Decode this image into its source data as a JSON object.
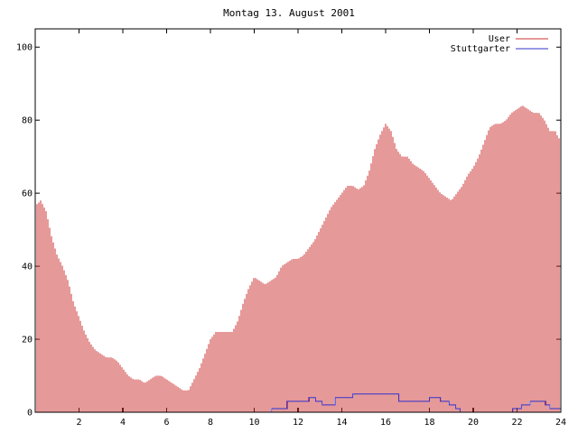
{
  "chart_data": {
    "type": "bar",
    "title": "Montag 13. August 2001",
    "xlim": [
      0,
      24
    ],
    "ylim": [
      0,
      105
    ],
    "x_ticks": [
      2,
      4,
      6,
      8,
      10,
      12,
      14,
      16,
      18,
      20,
      22,
      24
    ],
    "y_ticks": [
      0,
      20,
      40,
      60,
      80,
      100
    ],
    "legend_position": "top-right",
    "colors": {
      "user": "#cc3333",
      "stuttgarter": "#3333cc"
    },
    "series": [
      {
        "name": "User",
        "style": "impulses",
        "points": [
          [
            0.1,
            57
          ],
          [
            0.25,
            58
          ],
          [
            0.5,
            55
          ],
          [
            0.75,
            48
          ],
          [
            1.0,
            43
          ],
          [
            1.25,
            40
          ],
          [
            1.5,
            36
          ],
          [
            1.75,
            30
          ],
          [
            2.0,
            26
          ],
          [
            2.25,
            22
          ],
          [
            2.5,
            19
          ],
          [
            2.75,
            17
          ],
          [
            3.0,
            16
          ],
          [
            3.25,
            15
          ],
          [
            3.5,
            15
          ],
          [
            3.75,
            14
          ],
          [
            4.0,
            12
          ],
          [
            4.25,
            10
          ],
          [
            4.5,
            9
          ],
          [
            4.75,
            9
          ],
          [
            5.0,
            8
          ],
          [
            5.25,
            9
          ],
          [
            5.5,
            10
          ],
          [
            5.75,
            10
          ],
          [
            6.0,
            9
          ],
          [
            6.25,
            8
          ],
          [
            6.5,
            7
          ],
          [
            6.75,
            6
          ],
          [
            7.0,
            6
          ],
          [
            7.25,
            9
          ],
          [
            7.5,
            12
          ],
          [
            7.75,
            16
          ],
          [
            8.0,
            20
          ],
          [
            8.25,
            22
          ],
          [
            8.5,
            22
          ],
          [
            8.75,
            22
          ],
          [
            9.0,
            22
          ],
          [
            9.25,
            25
          ],
          [
            9.5,
            30
          ],
          [
            9.75,
            34
          ],
          [
            10.0,
            37
          ],
          [
            10.25,
            36
          ],
          [
            10.5,
            35
          ],
          [
            10.75,
            36
          ],
          [
            11.0,
            37
          ],
          [
            11.25,
            40
          ],
          [
            11.5,
            41
          ],
          [
            11.75,
            42
          ],
          [
            12.0,
            42
          ],
          [
            12.25,
            43
          ],
          [
            12.5,
            45
          ],
          [
            12.75,
            47
          ],
          [
            13.0,
            50
          ],
          [
            13.25,
            53
          ],
          [
            13.5,
            56
          ],
          [
            13.75,
            58
          ],
          [
            14.0,
            60
          ],
          [
            14.25,
            62
          ],
          [
            14.5,
            62
          ],
          [
            14.75,
            61
          ],
          [
            15.0,
            62
          ],
          [
            15.25,
            66
          ],
          [
            15.5,
            72
          ],
          [
            15.75,
            76
          ],
          [
            16.0,
            79
          ],
          [
            16.25,
            77
          ],
          [
            16.5,
            72
          ],
          [
            16.75,
            70
          ],
          [
            17.0,
            70
          ],
          [
            17.25,
            68
          ],
          [
            17.5,
            67
          ],
          [
            17.75,
            66
          ],
          [
            18.0,
            64
          ],
          [
            18.25,
            62
          ],
          [
            18.5,
            60
          ],
          [
            18.75,
            59
          ],
          [
            19.0,
            58
          ],
          [
            19.25,
            60
          ],
          [
            19.5,
            62
          ],
          [
            19.75,
            65
          ],
          [
            20.0,
            67
          ],
          [
            20.25,
            70
          ],
          [
            20.5,
            74
          ],
          [
            20.75,
            78
          ],
          [
            21.0,
            79
          ],
          [
            21.25,
            79
          ],
          [
            21.5,
            80
          ],
          [
            21.75,
            82
          ],
          [
            22.0,
            83
          ],
          [
            22.25,
            84
          ],
          [
            22.5,
            83
          ],
          [
            22.75,
            82
          ],
          [
            23.0,
            82
          ],
          [
            23.25,
            80
          ],
          [
            23.5,
            77
          ],
          [
            23.75,
            77
          ],
          [
            23.9,
            75
          ]
        ]
      },
      {
        "name": "Stuttgarter",
        "style": "line",
        "points": [
          [
            0,
            0
          ],
          [
            10.7,
            0
          ],
          [
            10.8,
            1
          ],
          [
            11.4,
            1
          ],
          [
            11.5,
            3
          ],
          [
            12.4,
            3
          ],
          [
            12.5,
            4
          ],
          [
            12.8,
            3
          ],
          [
            13.1,
            2
          ],
          [
            13.4,
            2
          ],
          [
            13.7,
            4
          ],
          [
            14.1,
            4
          ],
          [
            14.5,
            5
          ],
          [
            14.9,
            5
          ],
          [
            15.5,
            5
          ],
          [
            16.3,
            5
          ],
          [
            16.6,
            3
          ],
          [
            17.0,
            3
          ],
          [
            17.5,
            3
          ],
          [
            18.0,
            4
          ],
          [
            18.5,
            3
          ],
          [
            18.9,
            2
          ],
          [
            19.2,
            1
          ],
          [
            19.4,
            0
          ],
          [
            21.6,
            0
          ],
          [
            21.8,
            1
          ],
          [
            22.2,
            2
          ],
          [
            22.6,
            3
          ],
          [
            23.0,
            3
          ],
          [
            23.3,
            2
          ],
          [
            23.5,
            1
          ],
          [
            23.7,
            1
          ],
          [
            24,
            0
          ]
        ]
      }
    ]
  }
}
